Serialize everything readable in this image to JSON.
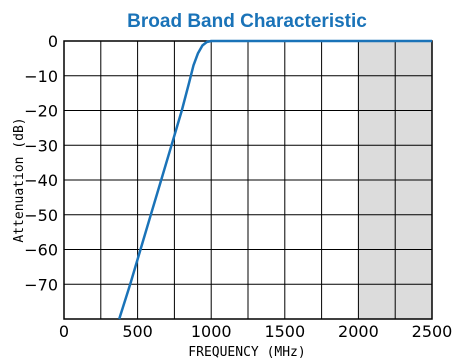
{
  "chart_data": {
    "type": "line",
    "title": "Broad Band Characteristic",
    "xlabel": "FREQUENCY (MHz)",
    "ylabel": "Attenuation (dB)",
    "xlim": [
      0,
      2500
    ],
    "ylim": [
      -80,
      0
    ],
    "x_ticks": [
      0,
      500,
      1000,
      1500,
      2000,
      2500
    ],
    "x_tick_labels": [
      "0",
      "500",
      "1000",
      "1500",
      "2000",
      "2500"
    ],
    "y_ticks": [
      0,
      -10,
      -20,
      -30,
      -40,
      -50,
      -60,
      -70
    ],
    "y_tick_labels": [
      "0",
      "−10",
      "−20",
      "−30",
      "−40",
      "−50",
      "−60",
      "−70"
    ],
    "grid": true,
    "shaded_region": {
      "x": [
        2000,
        2500
      ],
      "color": "#dcdcdc"
    },
    "series": [
      {
        "color": "#1a73b8",
        "points": [
          [
            375,
            -80
          ],
          [
            450,
            -70
          ],
          [
            520,
            -60
          ],
          [
            590,
            -50
          ],
          [
            660,
            -40
          ],
          [
            730,
            -30
          ],
          [
            800,
            -20
          ],
          [
            850,
            -12
          ],
          [
            880,
            -7
          ],
          [
            910,
            -3.5
          ],
          [
            940,
            -1.3
          ],
          [
            970,
            -0.3
          ],
          [
            1000,
            0
          ],
          [
            2500,
            0
          ]
        ]
      }
    ],
    "colors": {
      "title": "#1a73b8",
      "line": "#1a73b8",
      "grid": "#000000"
    }
  }
}
